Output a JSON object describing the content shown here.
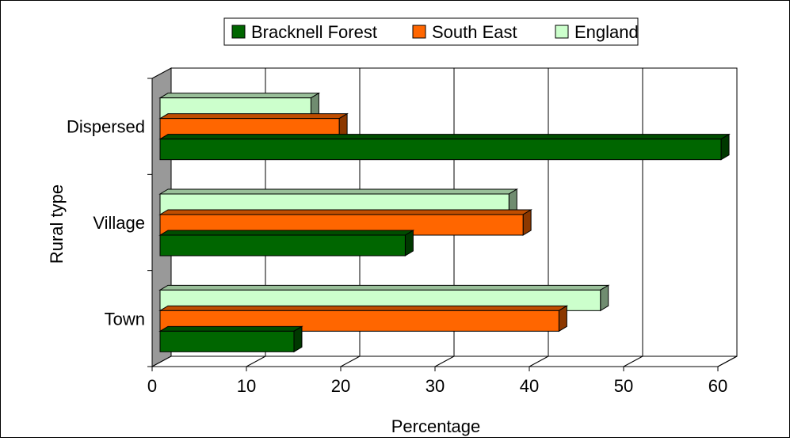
{
  "chart_data": {
    "type": "bar",
    "orientation": "horizontal",
    "three_d": true,
    "categories": [
      "Dispersed",
      "Village",
      "Town"
    ],
    "series": [
      {
        "name": "Bracknell Forest",
        "color": "#006600",
        "values": [
          59.5,
          26,
          14.2
        ]
      },
      {
        "name": "South East",
        "color": "#FF6600",
        "values": [
          19,
          38.5,
          42.3
        ]
      },
      {
        "name": "England",
        "color": "#CCFFCC",
        "values": [
          16,
          37,
          46.7
        ]
      }
    ],
    "xlabel": "Percentage",
    "ylabel": "Rural type",
    "xlim": [
      0,
      60
    ],
    "xticks": [
      "0",
      "10",
      "20",
      "30",
      "40",
      "50",
      "60"
    ],
    "grid": true,
    "legend": "top-center"
  }
}
